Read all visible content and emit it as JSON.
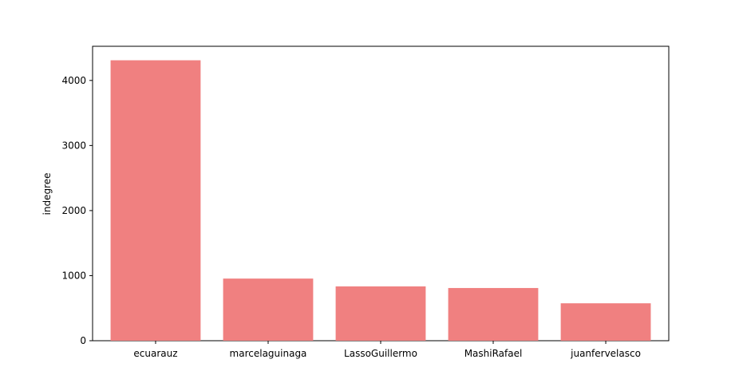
{
  "chart_data": {
    "type": "bar",
    "title": "",
    "xlabel": "",
    "ylabel": "indegree",
    "categories": [
      "ecuarauz",
      "marcelaguinaga",
      "LassoGuillermo",
      "MashiRafael",
      "juanfervelasco"
    ],
    "values": [
      4310,
      955,
      835,
      810,
      575
    ],
    "ylim": [
      0,
      4525
    ],
    "yticks": [
      0,
      1000,
      2000,
      3000,
      4000
    ],
    "grid": false,
    "bar_color": "#f08080"
  }
}
